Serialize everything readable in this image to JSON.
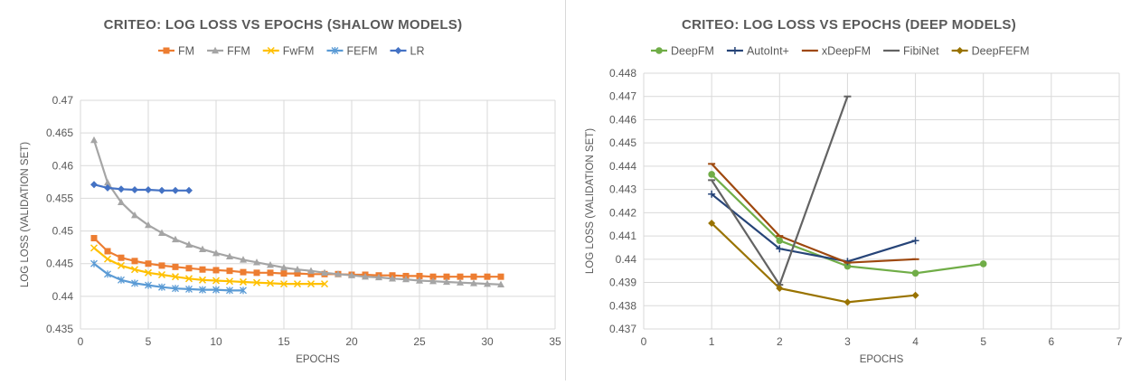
{
  "chart_data": [
    {
      "type": "line",
      "title": "CRITEO: LOG LOSS VS EPOCHS (SHALOW MODELS)",
      "xlabel": "EPOCHS",
      "ylabel": "LOG LOSS (VALIDATION SET)",
      "xlim": [
        0,
        35
      ],
      "ylim": [
        0.435,
        0.47
      ],
      "x_ticks": [
        "0",
        "5",
        "10",
        "15",
        "20",
        "25",
        "30",
        "35"
      ],
      "y_ticks": [
        "0.435",
        "0.44",
        "0.445",
        "0.45",
        "0.455",
        "0.46",
        "0.465",
        "0.47"
      ],
      "grid": true,
      "legend_position": "top",
      "series": [
        {
          "name": "FM",
          "color": "#ED7D31",
          "marker": "square",
          "x": [
            1,
            2,
            3,
            4,
            5,
            6,
            7,
            8,
            9,
            10,
            11,
            12,
            13,
            14,
            15,
            16,
            17,
            18,
            19,
            20,
            21,
            22,
            23,
            24,
            25,
            26,
            27,
            28,
            29,
            30,
            31
          ],
          "y": [
            0.4489,
            0.4469,
            0.4459,
            0.4454,
            0.445,
            0.4447,
            0.4445,
            0.4443,
            0.4441,
            0.444,
            0.4439,
            0.4437,
            0.4436,
            0.4436,
            0.4435,
            0.4435,
            0.4434,
            0.4434,
            0.4434,
            0.4433,
            0.4433,
            0.4432,
            0.4432,
            0.4431,
            0.4431,
            0.443,
            0.443,
            0.443,
            0.443,
            0.443,
            0.443
          ]
        },
        {
          "name": "FFM",
          "color": "#A5A5A5",
          "marker": "triangle",
          "x": [
            1,
            2,
            3,
            4,
            5,
            6,
            7,
            8,
            9,
            10,
            11,
            12,
            13,
            14,
            15,
            16,
            17,
            18,
            19,
            20,
            21,
            22,
            23,
            24,
            25,
            26,
            27,
            28,
            29,
            30,
            31
          ],
          "y": [
            0.4639,
            0.4574,
            0.4544,
            0.4524,
            0.4509,
            0.4497,
            0.4487,
            0.4479,
            0.4472,
            0.4466,
            0.4461,
            0.4456,
            0.4452,
            0.4448,
            0.4444,
            0.4441,
            0.4439,
            0.4436,
            0.4434,
            0.4432,
            0.443,
            0.4429,
            0.4427,
            0.4426,
            0.4424,
            0.4423,
            0.4422,
            0.4421,
            0.442,
            0.4419,
            0.4418
          ]
        },
        {
          "name": "FwFM",
          "color": "#FFC000",
          "marker": "x",
          "x": [
            1,
            2,
            3,
            4,
            5,
            6,
            7,
            8,
            9,
            10,
            11,
            12,
            13,
            14,
            15,
            16,
            17,
            18
          ],
          "y": [
            0.4474,
            0.4457,
            0.4447,
            0.4441,
            0.4436,
            0.4433,
            0.443,
            0.4427,
            0.4425,
            0.4424,
            0.4423,
            0.4422,
            0.4421,
            0.442,
            0.4419,
            0.4419,
            0.4419,
            0.4419
          ]
        },
        {
          "name": "FEFM",
          "color": "#5B9BD5",
          "marker": "asterisk",
          "x": [
            1,
            2,
            3,
            4,
            5,
            6,
            7,
            8,
            9,
            10,
            11,
            12
          ],
          "y": [
            0.445,
            0.4434,
            0.4425,
            0.442,
            0.4417,
            0.4414,
            0.4412,
            0.4411,
            0.441,
            0.441,
            0.4409,
            0.4409
          ]
        },
        {
          "name": "LR",
          "color": "#4472C4",
          "marker": "diamond",
          "x": [
            1,
            2,
            3,
            4,
            5,
            6,
            7,
            8
          ],
          "y": [
            0.4571,
            0.4566,
            0.4564,
            0.4563,
            0.4563,
            0.4562,
            0.4562,
            0.4562
          ]
        }
      ]
    },
    {
      "type": "line",
      "title": "CRITEO: LOG LOSS VS EPOCHS (DEEP MODELS)",
      "xlabel": "EPOCHS",
      "ylabel": "LOG LOSS (VALIDATION SET)",
      "xlim": [
        0,
        7
      ],
      "ylim": [
        0.437,
        0.448
      ],
      "x_ticks": [
        "0",
        "1",
        "2",
        "3",
        "4",
        "5",
        "6",
        "7"
      ],
      "y_ticks": [
        "0.437",
        "0.438",
        "0.439",
        "0.44",
        "0.441",
        "0.442",
        "0.443",
        "0.444",
        "0.445",
        "0.446",
        "0.447",
        "0.448"
      ],
      "grid": true,
      "legend_position": "top",
      "series": [
        {
          "name": "DeepFM",
          "color": "#70AD47",
          "marker": "circle",
          "x": [
            1,
            2,
            3,
            4,
            5
          ],
          "y": [
            0.44365,
            0.4408,
            0.4397,
            0.4394,
            0.4398
          ]
        },
        {
          "name": "AutoInt+",
          "color": "#264478",
          "marker": "plus",
          "x": [
            1,
            2,
            3,
            4
          ],
          "y": [
            0.4428,
            0.44045,
            0.4399,
            0.4408
          ]
        },
        {
          "name": "xDeepFM",
          "color": "#9E480E",
          "marker": "dash",
          "x": [
            1,
            2,
            3,
            4
          ],
          "y": [
            0.4441,
            0.441,
            0.43985,
            0.44
          ]
        },
        {
          "name": "FibiNet",
          "color": "#636363",
          "marker": "dash",
          "x": [
            1,
            2,
            3
          ],
          "y": [
            0.4434,
            0.4389,
            0.447
          ]
        },
        {
          "name": "DeepFEFM",
          "color": "#997300",
          "marker": "diamond",
          "x": [
            1,
            2,
            3,
            4
          ],
          "y": [
            0.44155,
            0.43875,
            0.43815,
            0.43845
          ]
        }
      ]
    }
  ]
}
